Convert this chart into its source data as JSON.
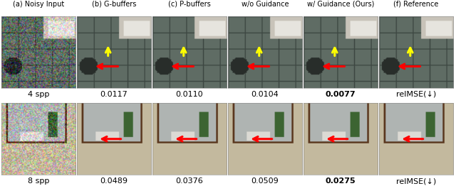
{
  "col_labels": [
    "(a) Noisy Input",
    "(b) G-buffers",
    "(c) P-buffers",
    "(d) Both buffers\nw/o Guidance",
    "(e) Both buffers\nw/ Guidance (Ours)",
    "(f) Reference"
  ],
  "row1_captions": [
    "4 spp",
    "0.0117",
    "0.0110",
    "0.0104",
    "0.0077",
    "relMSE(↓)"
  ],
  "row2_captions": [
    "8 spp",
    "0.0489",
    "0.0376",
    "0.0509",
    "0.0275",
    "relMSE(↓)"
  ],
  "bold_col_row1": 4,
  "bold_col_row2": 4,
  "bg_color": "#ffffff",
  "text_color": "#000000",
  "label_fontsize": 7.0,
  "caption_fontsize": 8.0,
  "fig_width": 6.4,
  "fig_height": 2.69,
  "row1_noisy_color": [
    90,
    90,
    85
  ],
  "row1_scene_color": [
    100,
    108,
    95
  ],
  "row2_noisy_color": [
    150,
    130,
    100
  ],
  "row2_scene_color": [
    185,
    175,
    150
  ],
  "arrow_yellow": "#ffff00",
  "arrow_red": "#ff0000"
}
